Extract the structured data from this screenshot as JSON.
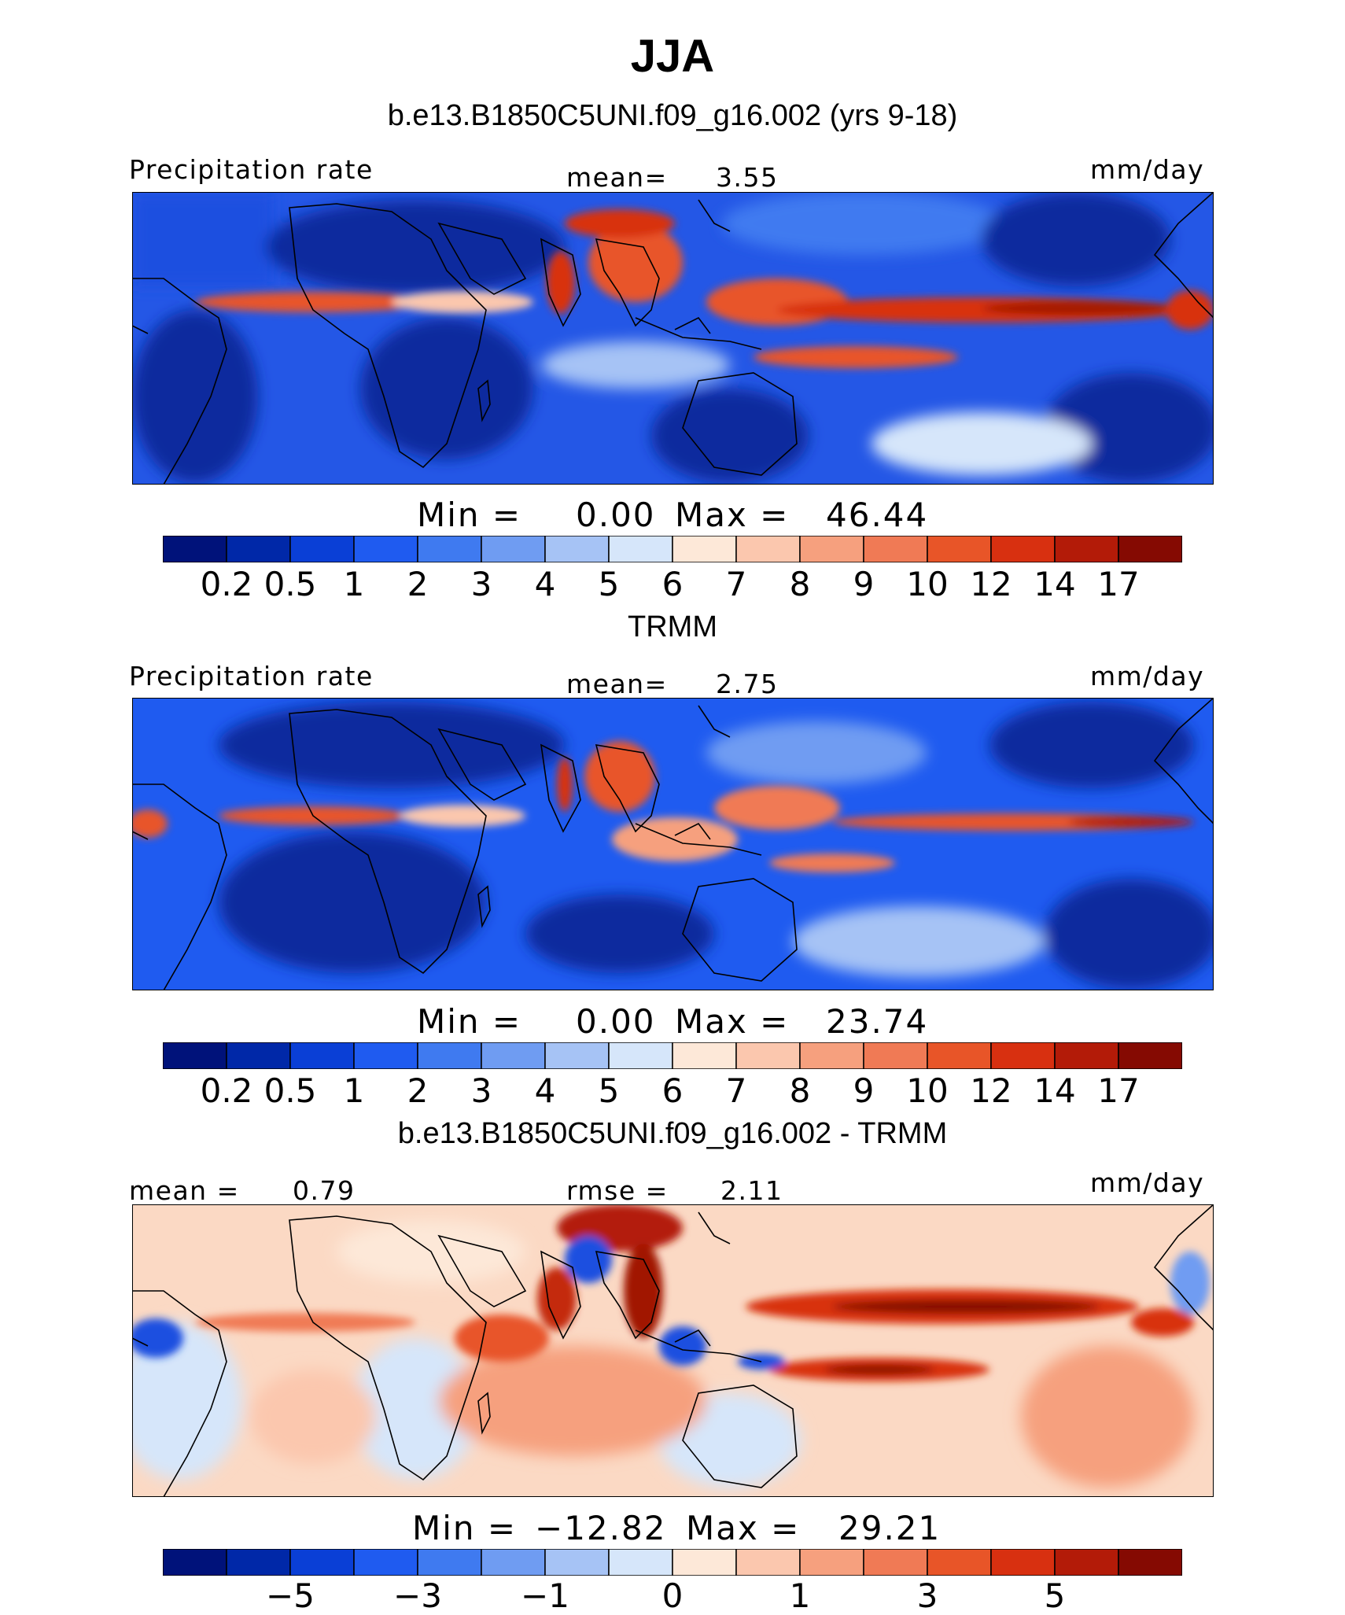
{
  "title": "JJA",
  "subtitle": "b.e13.B1850C5UNI.f09_g16.002 (yrs 9-18)",
  "panels": [
    {
      "id": "model",
      "section_title": "",
      "left_label": "Precipitation rate",
      "center_label": "mean=",
      "center_value": "3.55",
      "units": "mm/day",
      "min_label": "Min  =",
      "min_value": "0.00",
      "max_label": "Max  =",
      "max_value": "46.44"
    },
    {
      "id": "trmm",
      "section_title": "TRMM",
      "left_label": "Precipitation rate",
      "center_label": "mean=",
      "center_value": "2.75",
      "units": "mm/day",
      "min_label": "Min  =",
      "min_value": "0.00",
      "max_label": "Max  =",
      "max_value": "23.74"
    },
    {
      "id": "diff",
      "section_title": "b.e13.B1850C5UNI.f09_g16.002 - TRMM",
      "left_label": "mean =",
      "left_value": "0.79",
      "center_label": "rmse =",
      "center_value": "2.11",
      "units": "mm/day",
      "min_label": "Min  =",
      "min_value": "−12.82",
      "max_label": "Max  =",
      "max_value": "29.21"
    }
  ],
  "colorbars": {
    "precip": {
      "colors": [
        "#00127a",
        "#0028a8",
        "#0a3fd6",
        "#1f5bf0",
        "#3f7af0",
        "#6f9cf2",
        "#a6c3f5",
        "#d6e6fa",
        "#fde8d8",
        "#fbc7ae",
        "#f6a07e",
        "#f07a55",
        "#e85528",
        "#d83010",
        "#b31b08",
        "#850a02"
      ],
      "ticks": [
        "0.2",
        "0.5",
        "1",
        "2",
        "3",
        "4",
        "5",
        "6",
        "7",
        "8",
        "9",
        "10",
        "12",
        "14",
        "17"
      ]
    },
    "diff": {
      "colors": [
        "#00127a",
        "#0028a8",
        "#0a3fd6",
        "#1f5bf0",
        "#3f7af0",
        "#6f9cf2",
        "#a6c3f5",
        "#d6e6fa",
        "#fde8d8",
        "#fbc7ae",
        "#f6a07e",
        "#f07a55",
        "#e85528",
        "#d83010",
        "#b31b08",
        "#850a02"
      ],
      "ticks": [
        "−5",
        "−3",
        "−1",
        "0",
        "1",
        "3",
        "5"
      ]
    }
  },
  "map_colors": {
    "dry": "#0a2a9e",
    "low": "#2457e6",
    "mid": "#7aa6f2",
    "neutral": "#e3ecfb",
    "warm": "#fbc7ae",
    "wet": "#e8552a",
    "verywet": "#a11605",
    "diff_bg": "#fbd9c4",
    "diff_pos": "#f08a60",
    "diff_strong": "#c42a0c",
    "diff_neg": "#6f9cf2",
    "diff_neg_strong": "#1f4fe0",
    "coast": "#000000"
  }
}
